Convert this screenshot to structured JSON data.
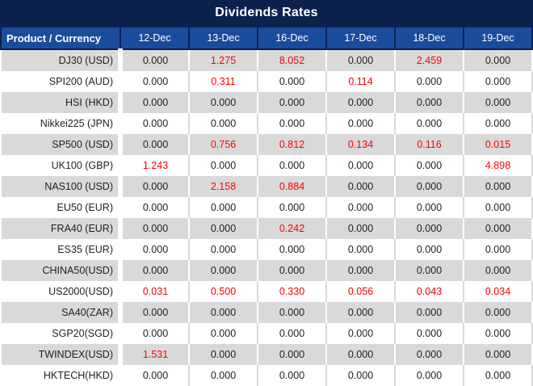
{
  "title": "Dividends Rates",
  "colors": {
    "title_bg": "#0D214E",
    "header_bg": "#1A4C9E",
    "header_text": "#FFFFFF",
    "row_alt_bg": "#D9D9D9",
    "row_bg": "#FFFFFF",
    "value_text": "#1F1F1F",
    "highlight_red": "#FF0000"
  },
  "table": {
    "product_label": "Product / Currency",
    "dates": [
      "12-Dec",
      "13-Dec",
      "16-Dec",
      "17-Dec",
      "18-Dec",
      "19-Dec"
    ],
    "rows": [
      {
        "product": "DJ30 (USD)",
        "values": [
          "0.000",
          "1.275",
          "8.052",
          "0.000",
          "2.459",
          "0.000"
        ],
        "red": [
          false,
          true,
          true,
          false,
          true,
          false
        ]
      },
      {
        "product": "SPI200 (AUD)",
        "values": [
          "0.000",
          "0.311",
          "0.000",
          "0.114",
          "0.000",
          "0.000"
        ],
        "red": [
          false,
          true,
          false,
          true,
          false,
          false
        ]
      },
      {
        "product": "HSI (HKD)",
        "values": [
          "0.000",
          "0.000",
          "0.000",
          "0.000",
          "0.000",
          "0.000"
        ],
        "red": [
          false,
          false,
          false,
          false,
          false,
          false
        ]
      },
      {
        "product": "Nikkei225 (JPN)",
        "values": [
          "0.000",
          "0.000",
          "0.000",
          "0.000",
          "0.000",
          "0.000"
        ],
        "red": [
          false,
          false,
          false,
          false,
          false,
          false
        ]
      },
      {
        "product": "SP500 (USD)",
        "values": [
          "0.000",
          "0.756",
          "0.812",
          "0.134",
          "0.116",
          "0.015"
        ],
        "red": [
          false,
          true,
          true,
          true,
          true,
          true
        ]
      },
      {
        "product": "UK100 (GBP)",
        "values": [
          "1.243",
          "0.000",
          "0.000",
          "0.000",
          "0.000",
          "4.898"
        ],
        "red": [
          true,
          false,
          false,
          false,
          false,
          true
        ]
      },
      {
        "product": "NAS100 (USD)",
        "values": [
          "0.000",
          "2.158",
          "0.884",
          "0.000",
          "0.000",
          "0.000"
        ],
        "red": [
          false,
          true,
          true,
          false,
          false,
          false
        ]
      },
      {
        "product": "EU50 (EUR)",
        "values": [
          "0.000",
          "0.000",
          "0.000",
          "0.000",
          "0.000",
          "0.000"
        ],
        "red": [
          false,
          false,
          false,
          false,
          false,
          false
        ]
      },
      {
        "product": "FRA40 (EUR)",
        "values": [
          "0.000",
          "0.000",
          "0.242",
          "0.000",
          "0.000",
          "0.000"
        ],
        "red": [
          false,
          false,
          true,
          false,
          false,
          false
        ]
      },
      {
        "product": "ES35 (EUR)",
        "values": [
          "0.000",
          "0.000",
          "0.000",
          "0.000",
          "0.000",
          "0.000"
        ],
        "red": [
          false,
          false,
          false,
          false,
          false,
          false
        ]
      },
      {
        "product": "CHINA50(USD)",
        "values": [
          "0.000",
          "0.000",
          "0.000",
          "0.000",
          "0.000",
          "0.000"
        ],
        "red": [
          false,
          false,
          false,
          false,
          false,
          false
        ]
      },
      {
        "product": "US2000(USD)",
        "values": [
          "0.031",
          "0.500",
          "0.330",
          "0.056",
          "0.043",
          "0.034"
        ],
        "red": [
          true,
          true,
          true,
          true,
          true,
          true
        ]
      },
      {
        "product": "SA40(ZAR)",
        "values": [
          "0.000",
          "0.000",
          "0.000",
          "0.000",
          "0.000",
          "0.000"
        ],
        "red": [
          false,
          false,
          false,
          false,
          false,
          false
        ]
      },
      {
        "product": "SGP20(SGD)",
        "values": [
          "0.000",
          "0.000",
          "0.000",
          "0.000",
          "0.000",
          "0.000"
        ],
        "red": [
          false,
          false,
          false,
          false,
          false,
          false
        ]
      },
      {
        "product": "TWINDEX(USD)",
        "values": [
          "1.531",
          "0.000",
          "0.000",
          "0.000",
          "0.000",
          "0.000"
        ],
        "red": [
          true,
          false,
          false,
          false,
          false,
          false
        ]
      },
      {
        "product": "HKTECH(HKD)",
        "values": [
          "0.000",
          "0.000",
          "0.000",
          "0.000",
          "0.000",
          "0.000"
        ],
        "red": [
          false,
          false,
          false,
          false,
          false,
          false
        ]
      }
    ]
  },
  "chart_data": {
    "type": "table",
    "title": "Dividends Rates",
    "columns": [
      "Product / Currency",
      "12-Dec",
      "13-Dec",
      "16-Dec",
      "17-Dec",
      "18-Dec",
      "19-Dec"
    ],
    "rows": [
      [
        "DJ30 (USD)",
        0.0,
        1.275,
        8.052,
        0.0,
        2.459,
        0.0
      ],
      [
        "SPI200 (AUD)",
        0.0,
        0.311,
        0.0,
        0.114,
        0.0,
        0.0
      ],
      [
        "HSI (HKD)",
        0.0,
        0.0,
        0.0,
        0.0,
        0.0,
        0.0
      ],
      [
        "Nikkei225 (JPN)",
        0.0,
        0.0,
        0.0,
        0.0,
        0.0,
        0.0
      ],
      [
        "SP500 (USD)",
        0.0,
        0.756,
        0.812,
        0.134,
        0.116,
        0.015
      ],
      [
        "UK100 (GBP)",
        1.243,
        0.0,
        0.0,
        0.0,
        0.0,
        4.898
      ],
      [
        "NAS100 (USD)",
        0.0,
        2.158,
        0.884,
        0.0,
        0.0,
        0.0
      ],
      [
        "EU50 (EUR)",
        0.0,
        0.0,
        0.0,
        0.0,
        0.0,
        0.0
      ],
      [
        "FRA40 (EUR)",
        0.0,
        0.0,
        0.242,
        0.0,
        0.0,
        0.0
      ],
      [
        "ES35 (EUR)",
        0.0,
        0.0,
        0.0,
        0.0,
        0.0,
        0.0
      ],
      [
        "CHINA50(USD)",
        0.0,
        0.0,
        0.0,
        0.0,
        0.0,
        0.0
      ],
      [
        "US2000(USD)",
        0.031,
        0.5,
        0.33,
        0.056,
        0.043,
        0.034
      ],
      [
        "SA40(ZAR)",
        0.0,
        0.0,
        0.0,
        0.0,
        0.0,
        0.0
      ],
      [
        "SGP20(SGD)",
        0.0,
        0.0,
        0.0,
        0.0,
        0.0,
        0.0
      ],
      [
        "TWINDEX(USD)",
        1.531,
        0.0,
        0.0,
        0.0,
        0.0,
        0.0
      ],
      [
        "HKTECH(HKD)",
        0.0,
        0.0,
        0.0,
        0.0,
        0.0,
        0.0
      ]
    ],
    "notes": "Non-zero values are rendered in red; zero values in black. Rows alternate gray/white backgrounds starting with gray."
  }
}
